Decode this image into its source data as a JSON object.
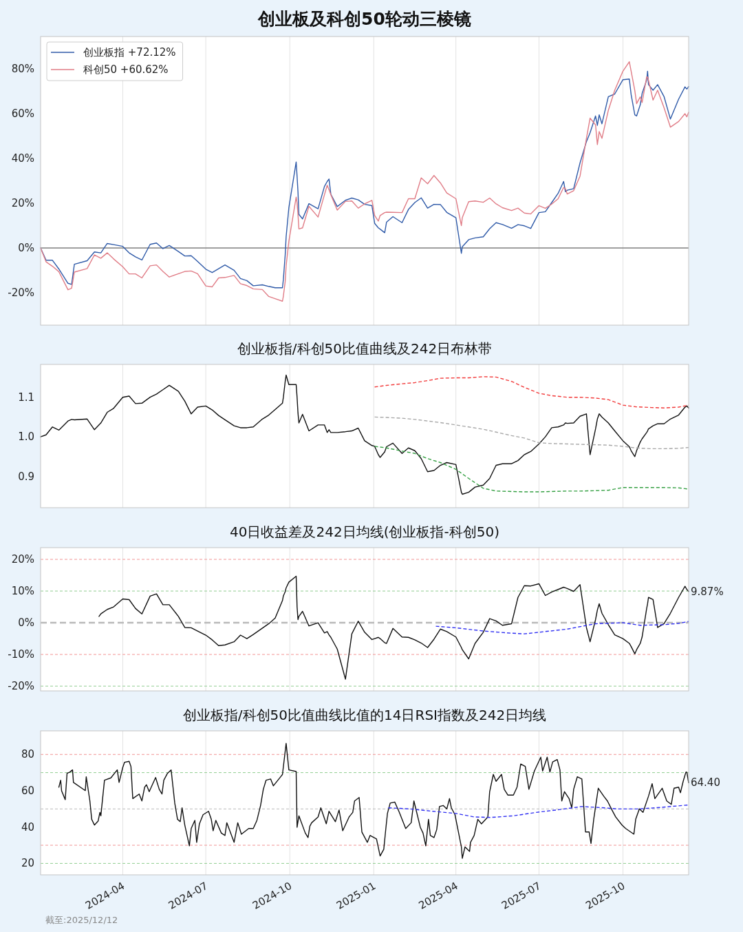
{
  "chart_data": [
    {
      "type": "line",
      "title": "创业板及科创50轮动三棱镜",
      "xlim": [
        "2024-01-02",
        "2025-12-12"
      ],
      "xticks": [
        "2024-04",
        "2024-07",
        "2024-10",
        "2025-01",
        "2025-04",
        "2025-07",
        "2025-10"
      ],
      "tick_labels": "y",
      "ylim": [
        -34.5,
        94.5
      ],
      "yticks": [
        {
          "value": -20,
          "label": "-20%"
        },
        {
          "value": 0,
          "label": "0%"
        },
        {
          "value": 20,
          "label": "20%"
        },
        {
          "value": 40,
          "label": "40%"
        },
        {
          "value": 60,
          "label": "60%"
        },
        {
          "value": 80,
          "label": "80%"
        }
      ],
      "grid": "x",
      "legend": "top left",
      "ref_lines": [
        {
          "axis": "y",
          "value": 0,
          "color": "#7f7f7f"
        }
      ],
      "x": [
        "2024-01-02",
        "2024-01-08",
        "2024-01-15",
        "2024-01-22",
        "2024-02-01",
        "2024-02-05",
        "2024-02-08",
        "2024-02-22",
        "2024-03-01",
        "2024-03-08",
        "2024-03-15",
        "2024-03-22",
        "2024-04-01",
        "2024-04-08",
        "2024-04-15",
        "2024-04-22",
        "2024-05-01",
        "2024-05-08",
        "2024-05-15",
        "2024-05-22",
        "2024-06-01",
        "2024-06-08",
        "2024-06-15",
        "2024-06-22",
        "2024-07-01",
        "2024-07-08",
        "2024-07-15",
        "2024-07-22",
        "2024-08-01",
        "2024-08-08",
        "2024-08-15",
        "2024-08-22",
        "2024-09-01",
        "2024-09-08",
        "2024-09-15",
        "2024-09-23",
        "2024-09-24",
        "2024-09-26",
        "2024-09-27",
        "2024-09-30",
        "2024-10-08",
        "2024-10-09",
        "2024-10-10",
        "2024-10-11",
        "2024-10-15",
        "2024-10-22",
        "2024-11-01",
        "2024-11-08",
        "2024-11-11",
        "2024-11-13",
        "2024-11-15",
        "2024-11-22",
        "2024-12-01",
        "2024-12-08",
        "2024-12-15",
        "2024-12-22",
        "2024-12-30",
        "2025-01-02",
        "2025-01-06",
        "2025-01-08",
        "2025-01-13",
        "2025-01-15",
        "2025-01-22",
        "2025-02-01",
        "2025-02-08",
        "2025-02-15",
        "2025-02-22",
        "2025-03-01",
        "2025-03-08",
        "2025-03-15",
        "2025-03-22",
        "2025-04-01",
        "2025-04-07",
        "2025-04-08",
        "2025-04-15",
        "2025-04-22",
        "2025-05-01",
        "2025-05-08",
        "2025-05-15",
        "2025-05-22",
        "2025-06-01",
        "2025-06-08",
        "2025-06-15",
        "2025-06-22",
        "2025-07-01",
        "2025-07-08",
        "2025-07-15",
        "2025-07-22",
        "2025-07-28",
        "2025-07-30",
        "2025-08-01",
        "2025-08-08",
        "2025-08-15",
        "2025-08-22",
        "2025-08-26",
        "2025-09-01",
        "2025-09-03",
        "2025-09-05",
        "2025-09-08",
        "2025-09-15",
        "2025-09-22",
        "2025-10-01",
        "2025-10-08",
        "2025-10-10",
        "2025-10-14",
        "2025-10-16",
        "2025-10-20",
        "2025-10-22",
        "2025-10-27",
        "2025-10-28",
        "2025-10-29",
        "2025-11-03",
        "2025-11-08",
        "2025-11-15",
        "2025-11-22",
        "2025-12-01",
        "2025-12-08",
        "2025-12-10",
        "2025-12-12"
      ],
      "series": [
        {
          "name": "创业板指 +72.12%",
          "color": "#2f5aa8",
          "values": [
            0,
            -5.5,
            -5.5,
            -9.4,
            -15.8,
            -16.3,
            -7.3,
            -5.7,
            -1.8,
            -2.2,
            2.0,
            1.5,
            0.7,
            -2.2,
            -4.0,
            -5.4,
            1.6,
            2.2,
            -0.3,
            1.1,
            -1.6,
            -3.6,
            -3.5,
            -6.0,
            -9.5,
            -11.0,
            -9.3,
            -7.6,
            -10.0,
            -13.7,
            -14.6,
            -16.9,
            -16.5,
            -17.2,
            -17.8,
            -17.8,
            -14.0,
            -3.0,
            5.0,
            18.0,
            38.4,
            32.0,
            25.0,
            15.0,
            13.0,
            19.8,
            17.5,
            27.5,
            29.7,
            30.8,
            24.0,
            18.5,
            21.3,
            22.3,
            21.5,
            19.5,
            18.9,
            11.0,
            9.0,
            8.4,
            6.8,
            11.5,
            14.0,
            11.3,
            17.2,
            20.3,
            22.4,
            17.8,
            19.5,
            19.4,
            15.9,
            13.5,
            -2.4,
            0.5,
            3.7,
            4.5,
            5.0,
            8.6,
            11.3,
            10.5,
            8.8,
            10.4,
            9.9,
            8.7,
            15.8,
            16.2,
            20.3,
            24.4,
            29.7,
            25.1,
            25.8,
            26.5,
            38.0,
            47.5,
            51.5,
            59.0,
            54.8,
            59.5,
            55.5,
            67.6,
            68.8,
            75.2,
            75.5,
            68.5,
            59.5,
            59.0,
            64.0,
            69.0,
            75.0,
            79.0,
            73.0,
            70.5,
            73.0,
            67.7,
            57.6,
            66.5,
            72.0,
            71.0,
            72.12
          ]
        },
        {
          "name": "科创50 +60.62%",
          "color": "#e07c86",
          "values": [
            0,
            -6.2,
            -8.2,
            -10.6,
            -18.7,
            -18.0,
            -10.8,
            -9.2,
            -3.1,
            -4.6,
            -2.2,
            -4.9,
            -8.4,
            -11.6,
            -11.6,
            -13.4,
            -8.0,
            -7.6,
            -10.5,
            -13.0,
            -11.5,
            -10.5,
            -10.3,
            -11.5,
            -17.0,
            -17.4,
            -13.4,
            -13.2,
            -12.3,
            -16.0,
            -16.8,
            -18.3,
            -18.6,
            -21.7,
            -22.7,
            -23.8,
            -21.5,
            -15.0,
            -8.0,
            3.0,
            22.7,
            20.0,
            15.0,
            8.5,
            9.0,
            18.6,
            13.8,
            23.8,
            28.0,
            26.0,
            23.8,
            16.9,
            20.8,
            21.0,
            17.8,
            19.7,
            21.3,
            14.5,
            12.0,
            14.5,
            15.8,
            16.0,
            15.9,
            15.8,
            22.0,
            22.0,
            31.3,
            28.7,
            32.4,
            29.1,
            24.6,
            22.0,
            10.0,
            13.5,
            20.7,
            21.0,
            20.4,
            22.3,
            19.7,
            18.0,
            16.7,
            17.8,
            15.6,
            15.2,
            18.9,
            17.7,
            19.6,
            22.0,
            27.0,
            26.5,
            24.1,
            25.6,
            32.1,
            49.0,
            58.0,
            55.0,
            46.2,
            52.0,
            49.0,
            61.5,
            70.5,
            79.0,
            83.2,
            79.0,
            70.4,
            64.5,
            67.5,
            65.0,
            76.4,
            76.4,
            75.0,
            66.1,
            70.5,
            62.7,
            54.0,
            56.5,
            60.0,
            58.6,
            60.62
          ]
        }
      ]
    },
    {
      "type": "line",
      "title": "创业板指/科创50比值曲线及242日布林带",
      "xlim": [
        "2024-01-02",
        "2025-12-12"
      ],
      "xticks": [
        "2024-04",
        "2024-07",
        "2024-10",
        "2025-01",
        "2025-04",
        "2025-07",
        "2025-10"
      ],
      "tick_labels": "y",
      "ylim": [
        0.821,
        1.183
      ],
      "yticks": [
        {
          "value": 0.9,
          "label": "0.9"
        },
        {
          "value": 1,
          "label": "1.0"
        },
        {
          "value": 1.1,
          "label": "1.1"
        }
      ],
      "grid": "x",
      "x": [
        "2024-01-02",
        "2024-01-08",
        "2024-01-15",
        "2024-01-22",
        "2024-02-01",
        "2024-02-05",
        "2024-02-08",
        "2024-02-22",
        "2024-03-01",
        "2024-03-08",
        "2024-03-15",
        "2024-03-22",
        "2024-04-01",
        "2024-04-08",
        "2024-04-15",
        "2024-04-22",
        "2024-05-01",
        "2024-05-08",
        "2024-05-15",
        "2024-05-22",
        "2024-06-01",
        "2024-06-08",
        "2024-06-15",
        "2024-06-22",
        "2024-07-01",
        "2024-07-08",
        "2024-07-15",
        "2024-07-22",
        "2024-08-01",
        "2024-08-08",
        "2024-08-15",
        "2024-08-22",
        "2024-09-01",
        "2024-09-08",
        "2024-09-15",
        "2024-09-23",
        "2024-09-24",
        "2024-09-26",
        "2024-09-27",
        "2024-09-30",
        "2024-10-08",
        "2024-10-09",
        "2024-10-10",
        "2024-10-11",
        "2024-10-15",
        "2024-10-22",
        "2024-11-01",
        "2024-11-08",
        "2024-11-11",
        "2024-11-13",
        "2024-11-15",
        "2024-11-22",
        "2024-12-01",
        "2024-12-08",
        "2024-12-15",
        "2024-12-22",
        "2024-12-30",
        "2025-01-02",
        "2025-01-06",
        "2025-01-08",
        "2025-01-13",
        "2025-01-15",
        "2025-01-22",
        "2025-02-01",
        "2025-02-08",
        "2025-02-15",
        "2025-02-22",
        "2025-03-01",
        "2025-03-08",
        "2025-03-15",
        "2025-03-22",
        "2025-04-01",
        "2025-04-07",
        "2025-04-08",
        "2025-04-15",
        "2025-04-22",
        "2025-05-01",
        "2025-05-08",
        "2025-05-15",
        "2025-05-22",
        "2025-06-01",
        "2025-06-08",
        "2025-06-15",
        "2025-06-22",
        "2025-07-01",
        "2025-07-08",
        "2025-07-15",
        "2025-07-22",
        "2025-07-28",
        "2025-07-30",
        "2025-08-01",
        "2025-08-08",
        "2025-08-15",
        "2025-08-22",
        "2025-08-26",
        "2025-09-01",
        "2025-09-03",
        "2025-09-05",
        "2025-09-08",
        "2025-09-15",
        "2025-09-22",
        "2025-10-01",
        "2025-10-08",
        "2025-10-10",
        "2025-10-14",
        "2025-10-16",
        "2025-10-20",
        "2025-10-22",
        "2025-10-27",
        "2025-10-28",
        "2025-10-29",
        "2025-11-03",
        "2025-11-08",
        "2025-11-15",
        "2025-11-22",
        "2025-12-01",
        "2025-12-08",
        "2025-12-10",
        "2025-12-12"
      ],
      "series": [
        {
          "color": "#111111",
          "values": [
            1.0,
            1.005,
            1.025,
            1.017,
            1.04,
            1.044,
            1.043,
            1.045,
            1.018,
            1.035,
            1.062,
            1.072,
            1.1,
            1.103,
            1.084,
            1.085,
            1.1,
            1.108,
            1.119,
            1.13,
            1.115,
            1.09,
            1.058,
            1.075,
            1.078,
            1.068,
            1.054,
            1.043,
            1.028,
            1.023,
            1.023,
            1.025,
            1.045,
            1.055,
            1.069,
            1.085,
            1.1,
            1.14,
            1.156,
            1.132,
            1.132,
            1.1,
            1.06,
            1.035,
            1.057,
            1.015,
            1.03,
            1.03,
            1.011,
            1.018,
            1.011,
            1.011,
            1.013,
            1.015,
            1.022,
            0.99,
            0.978,
            0.976,
            0.955,
            0.948,
            0.962,
            0.975,
            0.984,
            0.958,
            0.972,
            0.965,
            0.945,
            0.912,
            0.915,
            0.928,
            0.935,
            0.93,
            0.86,
            0.855,
            0.86,
            0.873,
            0.878,
            0.895,
            0.928,
            0.932,
            0.932,
            0.94,
            0.955,
            0.963,
            0.982,
            1.0,
            1.023,
            1.025,
            1.03,
            1.035,
            1.034,
            1.035,
            1.052,
            1.058,
            0.955,
            1.02,
            1.045,
            1.058,
            1.05,
            1.035,
            1.015,
            0.99,
            0.975,
            0.965,
            0.95,
            0.965,
            0.987,
            0.995,
            1.011,
            1.015,
            1.02,
            1.028,
            1.033,
            1.033,
            1.045,
            1.055,
            1.075,
            1.078,
            1.073
          ]
        },
        {
          "color": "#f23a3a",
          "line_style": "dashed",
          "x": [
            "2025-01-02",
            "2025-01-15",
            "2025-02-01",
            "2025-02-15",
            "2025-03-01",
            "2025-03-15",
            "2025-04-01",
            "2025-04-15",
            "2025-05-01",
            "2025-05-15",
            "2025-06-01",
            "2025-06-15",
            "2025-07-01",
            "2025-07-15",
            "2025-08-01",
            "2025-08-15",
            "2025-09-01",
            "2025-09-15",
            "2025-10-01",
            "2025-10-15",
            "2025-11-01",
            "2025-11-15",
            "2025-12-01",
            "2025-12-12"
          ],
          "values": [
            1.126,
            1.13,
            1.134,
            1.137,
            1.142,
            1.148,
            1.149,
            1.149,
            1.152,
            1.151,
            1.14,
            1.125,
            1.11,
            1.104,
            1.1,
            1.1,
            1.098,
            1.094,
            1.08,
            1.076,
            1.074,
            1.073,
            1.075,
            1.08
          ]
        },
        {
          "color": "#a6a6a6",
          "line_style": "dashed",
          "x": [
            "2025-01-02",
            "2025-01-15",
            "2025-02-01",
            "2025-02-15",
            "2025-03-01",
            "2025-03-15",
            "2025-04-01",
            "2025-04-15",
            "2025-05-01",
            "2025-05-15",
            "2025-06-01",
            "2025-06-15",
            "2025-07-01",
            "2025-07-15",
            "2025-08-01",
            "2025-08-15",
            "2025-09-01",
            "2025-09-15",
            "2025-10-01",
            "2025-10-15",
            "2025-11-01",
            "2025-11-15",
            "2025-12-01",
            "2025-12-12"
          ],
          "values": [
            1.05,
            1.049,
            1.047,
            1.044,
            1.04,
            1.036,
            1.03,
            1.025,
            1.019,
            1.012,
            1.003,
            0.997,
            0.985,
            0.983,
            0.982,
            0.981,
            0.98,
            0.979,
            0.976,
            0.972,
            0.97,
            0.97,
            0.971,
            0.973
          ]
        },
        {
          "color": "#35a043",
          "line_style": "dashed",
          "x": [
            "2025-01-02",
            "2025-01-15",
            "2025-02-01",
            "2025-02-15",
            "2025-03-01",
            "2025-03-15",
            "2025-04-01",
            "2025-04-15",
            "2025-05-01",
            "2025-05-15",
            "2025-06-01",
            "2025-06-15",
            "2025-07-01",
            "2025-07-15",
            "2025-08-01",
            "2025-08-15",
            "2025-09-01",
            "2025-09-15",
            "2025-10-01",
            "2025-10-15",
            "2025-11-01",
            "2025-11-15",
            "2025-12-01",
            "2025-12-12"
          ],
          "values": [
            0.976,
            0.972,
            0.964,
            0.958,
            0.945,
            0.935,
            0.918,
            0.895,
            0.87,
            0.863,
            0.862,
            0.861,
            0.861,
            0.862,
            0.863,
            0.863,
            0.864,
            0.865,
            0.872,
            0.872,
            0.872,
            0.872,
            0.871,
            0.868
          ]
        }
      ]
    },
    {
      "type": "line",
      "title": "40日收益差及242日均线(创业板指-科创50)",
      "xlim": [
        "2024-01-02",
        "2025-12-12"
      ],
      "xticks": [
        "2024-04",
        "2024-07",
        "2024-10",
        "2025-01",
        "2025-04",
        "2025-07",
        "2025-10"
      ],
      "tick_labels": "y",
      "ylim": [
        -21.5,
        23.7
      ],
      "yticks": [
        {
          "value": -20,
          "label": "-20%"
        },
        {
          "value": -10,
          "label": "-10%"
        },
        {
          "value": 0,
          "label": "0%"
        },
        {
          "value": 10,
          "label": "10%"
        },
        {
          "value": 20,
          "label": "20%"
        }
      ],
      "grid": "x",
      "ref_lines": [
        {
          "axis": "y",
          "value": 20,
          "color": "#f29494",
          "line_style": "dashed"
        },
        {
          "axis": "y",
          "value": 10,
          "color": "#8fcd8f",
          "line_style": "dashed"
        },
        {
          "axis": "y",
          "value": 0,
          "color": "#b9b9b9",
          "line_style": "dashed"
        },
        {
          "axis": "y",
          "value": -10,
          "color": "#f29494",
          "line_style": "dashed"
        },
        {
          "axis": "y",
          "value": -20,
          "color": "#8fcd8f",
          "line_style": "dashed"
        }
      ],
      "annotations": [
        {
          "text": "9.87%",
          "x": "2025-12-12",
          "y": 9.87
        }
      ],
      "series": [
        {
          "color": "#111111",
          "x": [
            "2024-03-06",
            "2024-03-08",
            "2024-03-15",
            "2024-03-22",
            "2024-04-01",
            "2024-04-08",
            "2024-04-15",
            "2024-04-22",
            "2024-05-01",
            "2024-05-08",
            "2024-05-15",
            "2024-05-22",
            "2024-06-01",
            "2024-06-08",
            "2024-06-15",
            "2024-06-22",
            "2024-07-01",
            "2024-07-08",
            "2024-07-15",
            "2024-07-22",
            "2024-08-01",
            "2024-08-08",
            "2024-08-15",
            "2024-08-22",
            "2024-09-01",
            "2024-09-08",
            "2024-09-15",
            "2024-09-23",
            "2024-09-24",
            "2024-09-26",
            "2024-09-27",
            "2024-09-30",
            "2024-10-08",
            "2024-10-09",
            "2024-10-10",
            "2024-10-11",
            "2024-10-15",
            "2024-10-22",
            "2024-11-01",
            "2024-11-08",
            "2024-11-11",
            "2024-11-13",
            "2024-11-15",
            "2024-11-22",
            "2024-12-01",
            "2024-12-08",
            "2024-12-15",
            "2024-12-22",
            "2024-12-30",
            "2025-01-02",
            "2025-01-06",
            "2025-01-08",
            "2025-01-13",
            "2025-01-15",
            "2025-01-22",
            "2025-02-01",
            "2025-02-08",
            "2025-02-15",
            "2025-02-22",
            "2025-03-01",
            "2025-03-08",
            "2025-03-15",
            "2025-03-22",
            "2025-04-01",
            "2025-04-07",
            "2025-04-08",
            "2025-04-15",
            "2025-04-22",
            "2025-05-01",
            "2025-05-08",
            "2025-05-15",
            "2025-05-22",
            "2025-06-01",
            "2025-06-08",
            "2025-06-15",
            "2025-06-22",
            "2025-07-01",
            "2025-07-08",
            "2025-07-15",
            "2025-07-22",
            "2025-07-28",
            "2025-07-30",
            "2025-08-01",
            "2025-08-08",
            "2025-08-15",
            "2025-08-22",
            "2025-08-26",
            "2025-09-01",
            "2025-09-03",
            "2025-09-05",
            "2025-09-08",
            "2025-09-15",
            "2025-09-22",
            "2025-10-01",
            "2025-10-08",
            "2025-10-10",
            "2025-10-14",
            "2025-10-16",
            "2025-10-20",
            "2025-10-22",
            "2025-10-27",
            "2025-10-28",
            "2025-10-29",
            "2025-11-03",
            "2025-11-08",
            "2025-11-15",
            "2025-11-22",
            "2025-12-01",
            "2025-12-08",
            "2025-12-10",
            "2025-12-12"
          ],
          "values": [
            2.0,
            2.8,
            4.2,
            5.0,
            7.5,
            7.3,
            4.5,
            2.8,
            8.4,
            9.1,
            5.7,
            5.7,
            2.0,
            -1.5,
            -1.6,
            -2.6,
            -3.9,
            -5.4,
            -7.2,
            -7.0,
            -6.0,
            -3.9,
            -5.0,
            -3.7,
            -1.7,
            -0.3,
            1.5,
            7.0,
            8.5,
            9.8,
            11.0,
            12.8,
            14.7,
            5.0,
            1.0,
            2.0,
            3.6,
            -1.0,
            0,
            -3.2,
            -2.8,
            -3.8,
            -4.6,
            -8.3,
            -17.8,
            -3.5,
            0.5,
            -3.0,
            -5.3,
            -5.0,
            -4.6,
            -5.0,
            -6.3,
            -6.5,
            -1.8,
            -4.5,
            -4.6,
            -5.4,
            -6.4,
            -7.8,
            -5.2,
            -2.0,
            -2.8,
            -4.5,
            -7.8,
            -8.5,
            -11.4,
            -6.5,
            -3.0,
            1.3,
            0.6,
            -0.8,
            -0.3,
            8.0,
            11.7,
            11.6,
            12.3,
            8.6,
            9.7,
            10.5,
            11.2,
            11.0,
            10.8,
            9.9,
            12.0,
            -1.5,
            -6.0,
            1.0,
            4.0,
            6.0,
            3.0,
            -0.6,
            -3.8,
            -5.0,
            -6.5,
            -7.5,
            -9.8,
            -8.5,
            -6.5,
            -4.5,
            4.5,
            6.0,
            8.0,
            7.3,
            -1.5,
            -0.3,
            3.0,
            8.0,
            11.5,
            10.5,
            9.87
          ]
        },
        {
          "color": "#2f2ff2",
          "line_style": "dashed",
          "x": [
            "2025-03-10",
            "2025-04-01",
            "2025-05-01",
            "2025-06-01",
            "2025-06-15",
            "2025-07-01",
            "2025-08-01",
            "2025-09-01",
            "2025-10-01",
            "2025-10-20",
            "2025-11-15",
            "2025-12-01",
            "2025-12-12"
          ],
          "values": [
            -1.1,
            -1.6,
            -2.6,
            -3.3,
            -3.5,
            -3.0,
            -2.0,
            -0.3,
            0.0,
            -0.8,
            -0.6,
            -0.2,
            0.4
          ]
        }
      ]
    },
    {
      "type": "line",
      "title": "创业板指/科创50比值曲线比值的14日RSI指数及242日均线",
      "xlim": [
        "2024-01-02",
        "2025-12-12"
      ],
      "xticks": [
        "2024-04",
        "2024-07",
        "2024-10",
        "2025-01",
        "2025-04",
        "2025-07",
        "2025-10"
      ],
      "ylim": [
        13.7,
        93.0
      ],
      "yticks": [
        20,
        40,
        60,
        80
      ],
      "grid": "x",
      "ref_lines": [
        {
          "axis": "y",
          "value": 80,
          "color": "#f29494",
          "line_style": "dashed"
        },
        {
          "axis": "y",
          "value": 70,
          "color": "#8fcd8f",
          "line_style": "dashed"
        },
        {
          "axis": "y",
          "value": 50,
          "color": "#b9b9b9",
          "line_style": "dashed"
        },
        {
          "axis": "y",
          "value": 30,
          "color": "#f29494",
          "line_style": "dashed"
        },
        {
          "axis": "y",
          "value": 20,
          "color": "#8fcd8f",
          "line_style": "dashed"
        }
      ],
      "annotations": [
        {
          "text": "64.40",
          "x": "2025-12-12",
          "y": 64.4
        },
        "截至:2025/12/12"
      ],
      "series": [
        {
          "color": "#111111",
          "x": [
            "2024-01-22",
            "2024-01-24",
            "2024-01-25",
            "2024-01-29",
            "2024-01-31",
            "2024-02-03",
            "2024-02-06",
            "2024-02-07",
            "2024-02-20",
            "2024-02-21",
            "2024-02-25",
            "2024-02-27",
            "2024-03-01",
            "2024-03-05",
            "2024-03-07",
            "2024-03-08",
            "2024-03-12",
            "2024-03-19",
            "2024-03-26",
            "2024-03-28",
            "2024-04-01",
            "2024-04-03",
            "2024-04-08",
            "2024-04-10",
            "2024-04-12",
            "2024-04-19",
            "2024-04-22",
            "2024-04-25",
            "2024-04-27",
            "2024-04-30",
            "2024-05-07",
            "2024-05-11",
            "2024-05-14",
            "2024-05-16",
            "2024-05-20",
            "2024-05-24",
            "2024-05-28",
            "2024-05-31",
            "2024-06-03",
            "2024-06-05",
            "2024-06-08",
            "2024-06-13",
            "2024-06-15",
            "2024-06-19",
            "2024-06-21",
            "2024-06-24",
            "2024-06-28",
            "2024-07-04",
            "2024-07-07",
            "2024-07-09",
            "2024-07-12",
            "2024-07-18",
            "2024-07-22",
            "2024-07-24",
            "2024-08-01",
            "2024-08-05",
            "2024-08-09",
            "2024-08-17",
            "2024-08-22",
            "2024-08-26",
            "2024-08-30",
            "2024-09-02",
            "2024-09-05",
            "2024-09-10",
            "2024-09-13",
            "2024-09-21",
            "2024-09-23",
            "2024-09-27",
            "2024-09-30",
            "2024-10-08",
            "2024-10-09",
            "2024-10-11",
            "2024-10-18",
            "2024-10-21",
            "2024-10-23",
            "2024-10-25",
            "2024-11-01",
            "2024-11-04",
            "2024-11-10",
            "2024-11-13",
            "2024-11-20",
            "2024-11-24",
            "2024-11-28",
            "2024-12-05",
            "2024-12-09",
            "2024-12-11",
            "2024-12-16",
            "2024-12-19",
            "2024-12-25",
            "2024-12-28",
            "2025-01-04",
            "2025-01-08",
            "2025-01-12",
            "2025-01-14",
            "2025-01-16",
            "2025-01-19",
            "2025-01-24",
            "2025-01-29",
            "2025-02-05",
            "2025-02-11",
            "2025-02-14",
            "2025-02-21",
            "2025-02-24",
            "2025-02-27",
            "2025-03-02",
            "2025-03-04",
            "2025-03-08",
            "2025-03-11",
            "2025-03-14",
            "2025-03-18",
            "2025-03-22",
            "2025-03-25",
            "2025-03-27",
            "2025-03-31",
            "2025-04-04",
            "2025-04-07",
            "2025-04-08",
            "2025-04-11",
            "2025-04-16",
            "2025-04-17",
            "2025-04-21",
            "2025-04-25",
            "2025-04-29",
            "2025-05-06",
            "2025-05-08",
            "2025-05-12",
            "2025-05-15",
            "2025-05-21",
            "2025-05-24",
            "2025-05-28",
            "2025-06-03",
            "2025-06-07",
            "2025-06-11",
            "2025-06-16",
            "2025-06-20",
            "2025-06-26",
            "2025-07-03",
            "2025-07-05",
            "2025-07-10",
            "2025-07-13",
            "2025-07-16",
            "2025-07-21",
            "2025-07-24",
            "2025-07-26",
            "2025-07-29",
            "2025-08-03",
            "2025-08-06",
            "2025-08-08",
            "2025-08-12",
            "2025-08-17",
            "2025-08-21",
            "2025-08-25",
            "2025-08-27",
            "2025-08-30",
            "2025-09-04",
            "2025-09-10",
            "2025-09-14",
            "2025-09-19",
            "2025-09-23",
            "2025-09-30",
            "2025-10-04",
            "2025-10-13",
            "2025-10-15",
            "2025-10-19",
            "2025-10-23",
            "2025-10-29",
            "2025-11-02",
            "2025-11-05",
            "2025-11-13",
            "2025-11-18",
            "2025-11-23",
            "2025-11-26",
            "2025-12-01",
            "2025-12-03",
            "2025-12-06",
            "2025-12-09",
            "2025-12-10",
            "2025-12-12"
          ],
          "values": [
            62.0,
            65.8,
            60.0,
            55.1,
            69.6,
            70.3,
            71.5,
            64.6,
            60.1,
            67.7,
            54.4,
            44.3,
            41.1,
            43.3,
            48.1,
            46.2,
            65.8,
            67.1,
            71.5,
            64.6,
            72.8,
            75.7,
            76.2,
            73.4,
            55.7,
            58.2,
            54.4,
            62.0,
            63.3,
            59.5,
            67.3,
            60.8,
            58.2,
            65.8,
            69.6,
            71.5,
            53.2,
            44.3,
            43.0,
            50.6,
            41.1,
            29.7,
            39.2,
            43.7,
            31.6,
            41.8,
            46.8,
            48.7,
            44.3,
            38.0,
            43.7,
            36.7,
            35.4,
            42.4,
            31.6,
            42.4,
            36.1,
            39.2,
            39.2,
            43.7,
            51.9,
            60.8,
            65.8,
            66.5,
            62.7,
            67.7,
            69.0,
            86.1,
            71.5,
            70.6,
            39.9,
            46.2,
            36.7,
            34.2,
            40.5,
            42.4,
            45.6,
            50.6,
            41.8,
            48.7,
            43.0,
            49.4,
            38.0,
            45.6,
            48.1,
            54.4,
            56.3,
            37.3,
            31.6,
            35.4,
            33.5,
            24.1,
            27.8,
            38.0,
            47.5,
            53.2,
            53.8,
            48.1,
            39.2,
            42.4,
            54.4,
            39.9,
            36.7,
            29.7,
            44.3,
            35.4,
            34.2,
            38.6,
            51.3,
            51.9,
            50.0,
            55.7,
            50.6,
            46.8,
            36.7,
            29.1,
            22.8,
            29.1,
            26.6,
            31.6,
            35.4,
            44.3,
            41.8,
            45.6,
            59.5,
            69.0,
            65.2,
            69.0,
            60.8,
            57.6,
            57.6,
            62.0,
            74.7,
            73.4,
            60.8,
            70.9,
            78.5,
            70.9,
            78.5,
            70.3,
            75.9,
            77.2,
            71.5,
            54.4,
            59.5,
            55.7,
            50.6,
            60.8,
            67.7,
            66.5,
            37.3,
            37.3,
            31.0,
            44.3,
            61.4,
            57.0,
            54.4,
            49.4,
            45.6,
            41.1,
            39.2,
            36.1,
            44.3,
            50.0,
            48.1,
            57.0,
            63.9,
            55.7,
            61.4,
            54.4,
            52.5,
            61.4,
            62.0,
            58.9,
            65.2,
            70.3,
            70.3,
            64.4
          ]
        },
        {
          "color": "#2f2ff2",
          "line_style": "dashed",
          "x": [
            "2025-01-17",
            "2025-02-10",
            "2025-03-07",
            "2025-04-01",
            "2025-04-21",
            "2025-05-09",
            "2025-06-03",
            "2025-06-28",
            "2025-07-23",
            "2025-08-17",
            "2025-09-11",
            "2025-09-24",
            "2025-10-19",
            "2025-11-13",
            "2025-12-12"
          ],
          "values": [
            50.6,
            50.0,
            48.7,
            47.5,
            45.6,
            45.3,
            46.2,
            48.1,
            49.6,
            51.3,
            50.6,
            50.0,
            50.0,
            50.9,
            52.2
          ]
        }
      ]
    }
  ]
}
